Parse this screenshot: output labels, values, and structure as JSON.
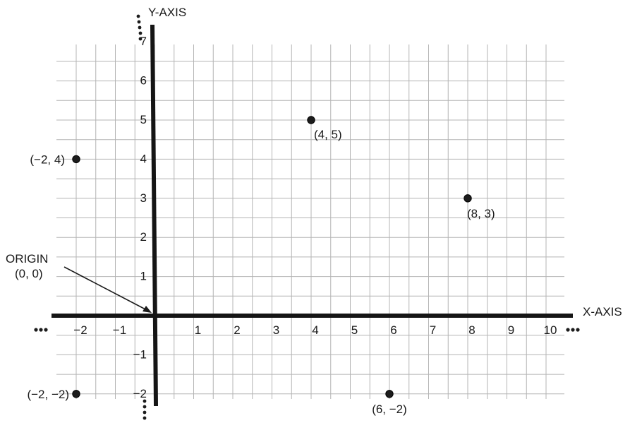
{
  "chart_data": {
    "type": "scatter",
    "x_axis_label": "X-AXIS",
    "y_axis_label": "Y-AXIS",
    "xlim": [
      -2,
      10
    ],
    "ylim": [
      -2,
      7
    ],
    "x_tick_labels": [
      "−2",
      "−1",
      "1",
      "2",
      "3",
      "4",
      "5",
      "6",
      "7",
      "8",
      "9",
      "10"
    ],
    "y_tick_labels": [
      "7",
      "6",
      "5",
      "4",
      "3",
      "2",
      "1",
      "−1",
      "−2"
    ],
    "points": [
      {
        "x": 4,
        "y": 5,
        "label": "(4, 5)"
      },
      {
        "x": -2,
        "y": 4,
        "label": "(−2, 4)"
      },
      {
        "x": 8,
        "y": 3,
        "label": "(8, 3)"
      },
      {
        "x": -2,
        "y": -2,
        "label": "(−2, −2)"
      },
      {
        "x": 6,
        "y": -2,
        "label": "(6, −2)"
      }
    ],
    "annotation": {
      "lines": [
        "ORIGIN",
        "(0, 0)"
      ],
      "points_to": {
        "x": 0,
        "y": 0
      }
    },
    "grid": true,
    "axes_continue_with_dots": true
  }
}
